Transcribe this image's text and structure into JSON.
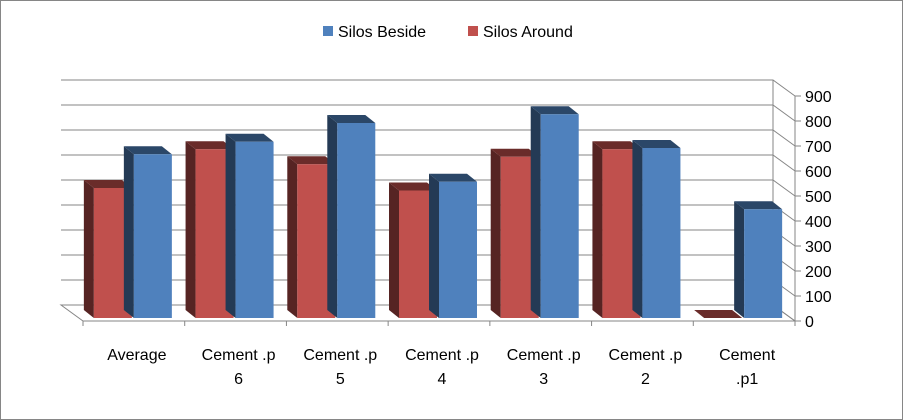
{
  "chart_data": {
    "type": "bar",
    "style": "3d-clustered-column",
    "categories": [
      [
        "Average"
      ],
      [
        "Cement .p",
        "6"
      ],
      [
        "Cement .p",
        "5"
      ],
      [
        "Cement .p",
        "4"
      ],
      [
        "Cement .p",
        "3"
      ],
      [
        "Cement .p",
        "2"
      ],
      [
        "Cement",
        ".p1"
      ]
    ],
    "series": [
      {
        "name": "Silos Around",
        "color": "#C0504D",
        "values": [
          520,
          675,
          615,
          510,
          645,
          675,
          0
        ]
      },
      {
        "name": "Silos  Beside",
        "color": "#4F81BD",
        "values": [
          655,
          705,
          780,
          545,
          815,
          680,
          435
        ]
      }
    ],
    "legend_order": [
      1,
      0
    ],
    "legend_position": "top",
    "ylim": [
      0,
      900
    ],
    "yticks": [
      "0",
      "100",
      "200",
      "300",
      "400",
      "500",
      "600",
      "700",
      "800",
      "900"
    ],
    "y_axis_side": "right",
    "grid": true
  }
}
